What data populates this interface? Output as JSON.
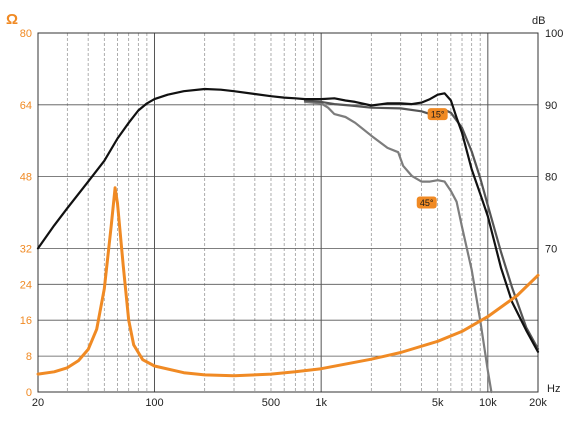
{
  "chart_data": {
    "type": "line",
    "x_scale": "log",
    "xlim": [
      20,
      20000
    ],
    "y_left_lim": [
      0,
      80
    ],
    "y_right_lim": [
      50,
      100
    ],
    "x_ticks": [
      {
        "value": 20,
        "label": "20"
      },
      {
        "value": 100,
        "label": "100"
      },
      {
        "value": 500,
        "label": "500"
      },
      {
        "value": 1000,
        "label": "1k"
      },
      {
        "value": 5000,
        "label": "5k"
      },
      {
        "value": 10000,
        "label": "10k"
      },
      {
        "value": 20000,
        "label": "20k"
      }
    ],
    "y_left_ticks": [
      0,
      8,
      16,
      24,
      32,
      48,
      64,
      80
    ],
    "y_right_ticks": [
      70,
      80,
      90,
      100
    ],
    "y_left_label": "Ω",
    "y_right_label": "dB",
    "x_unit_label": "Hz",
    "grid": true,
    "colors": {
      "axis_accent": "#f08a24",
      "impedance": "#f08a24",
      "on_axis": "#111111",
      "off_axis_15": "#555555",
      "off_axis_45": "#7d7d7d",
      "grid_major": "#555555",
      "grid_minor": "#9a9a9a",
      "annotation_bg": "#f08a24"
    },
    "series": [
      {
        "axis": "right",
        "points": [
          [
            20,
            70
          ],
          [
            25,
            73.2
          ],
          [
            30,
            75.6
          ],
          [
            40,
            79.3
          ],
          [
            50,
            82.2
          ],
          [
            60,
            85.3
          ],
          [
            70,
            87.5
          ],
          [
            80,
            89.2
          ],
          [
            90,
            90.2
          ],
          [
            100,
            90.8
          ],
          [
            120,
            91.4
          ],
          [
            150,
            91.9
          ],
          [
            200,
            92.2
          ],
          [
            250,
            92.1
          ],
          [
            300,
            91.9
          ],
          [
            400,
            91.5
          ],
          [
            500,
            91.2
          ],
          [
            600,
            91.0
          ],
          [
            700,
            90.9
          ],
          [
            800,
            90.8
          ],
          [
            1000,
            90.8
          ],
          [
            1200,
            90.9
          ],
          [
            1400,
            90.6
          ],
          [
            1600,
            90.4
          ],
          [
            2000,
            89.9
          ],
          [
            2500,
            90.2
          ],
          [
            3000,
            90.2
          ],
          [
            3500,
            90.1
          ],
          [
            4000,
            90.3
          ],
          [
            4500,
            90.8
          ],
          [
            5000,
            91.4
          ],
          [
            5500,
            91.6
          ],
          [
            6000,
            90.6
          ],
          [
            6500,
            88.2
          ],
          [
            7000,
            86.1
          ],
          [
            8000,
            81.0
          ],
          [
            9000,
            77.6
          ],
          [
            10000,
            74.5
          ],
          [
            12000,
            67.3
          ],
          [
            14000,
            62.5
          ],
          [
            17000,
            58.6
          ],
          [
            20000,
            55.6
          ]
        ]
      },
      {
        "axis": "right",
        "label": "15°",
        "points": [
          [
            800,
            90.6
          ],
          [
            1000,
            90.4
          ],
          [
            1200,
            90.1
          ],
          [
            1500,
            89.9
          ],
          [
            2000,
            89.6
          ],
          [
            3000,
            89.5
          ],
          [
            4000,
            89.1
          ],
          [
            4500,
            88.7
          ],
          [
            5000,
            89.0
          ],
          [
            5500,
            89.3
          ],
          [
            6000,
            88.9
          ],
          [
            7000,
            86.8
          ],
          [
            8000,
            83.5
          ],
          [
            9000,
            79.8
          ],
          [
            10000,
            76.0
          ],
          [
            12000,
            69.5
          ],
          [
            14000,
            64.5
          ],
          [
            17000,
            59.0
          ],
          [
            20000,
            56.0
          ]
        ]
      },
      {
        "axis": "right",
        "label": "45°",
        "points": [
          [
            800,
            90.4
          ],
          [
            1000,
            90.2
          ],
          [
            1100,
            89.6
          ],
          [
            1200,
            88.7
          ],
          [
            1400,
            88.3
          ],
          [
            1600,
            87.5
          ],
          [
            2000,
            85.7
          ],
          [
            2500,
            84.0
          ],
          [
            2900,
            83.4
          ],
          [
            3100,
            81.5
          ],
          [
            3500,
            80.1
          ],
          [
            4000,
            79.3
          ],
          [
            4500,
            79.3
          ],
          [
            5000,
            79.5
          ],
          [
            5500,
            79.3
          ],
          [
            6000,
            78.0
          ],
          [
            6500,
            76.5
          ],
          [
            7000,
            73.0
          ],
          [
            8000,
            67.0
          ],
          [
            9000,
            60.0
          ],
          [
            10000,
            53.0
          ],
          [
            10500,
            50.0
          ]
        ]
      },
      {
        "axis": "left",
        "points": [
          [
            20,
            4.0
          ],
          [
            25,
            4.5
          ],
          [
            30,
            5.4
          ],
          [
            35,
            7.0
          ],
          [
            40,
            9.5
          ],
          [
            45,
            14.0
          ],
          [
            50,
            23.0
          ],
          [
            55,
            37.0
          ],
          [
            58,
            45.5
          ],
          [
            60,
            42.0
          ],
          [
            65,
            28.0
          ],
          [
            70,
            16.0
          ],
          [
            75,
            10.5
          ],
          [
            85,
            7.2
          ],
          [
            100,
            5.8
          ],
          [
            150,
            4.3
          ],
          [
            200,
            3.8
          ],
          [
            300,
            3.6
          ],
          [
            500,
            4.0
          ],
          [
            700,
            4.5
          ],
          [
            1000,
            5.2
          ],
          [
            2000,
            7.3
          ],
          [
            3000,
            8.8
          ],
          [
            5000,
            11.3
          ],
          [
            7000,
            13.5
          ],
          [
            10000,
            16.8
          ],
          [
            15000,
            21.5
          ],
          [
            20000,
            26.0
          ]
        ]
      }
    ],
    "annotations": [
      {
        "text": "15°",
        "x": 5000,
        "y_right": 88.7
      },
      {
        "text": "45°",
        "x": 4300,
        "y_right": 76.4
      }
    ]
  }
}
